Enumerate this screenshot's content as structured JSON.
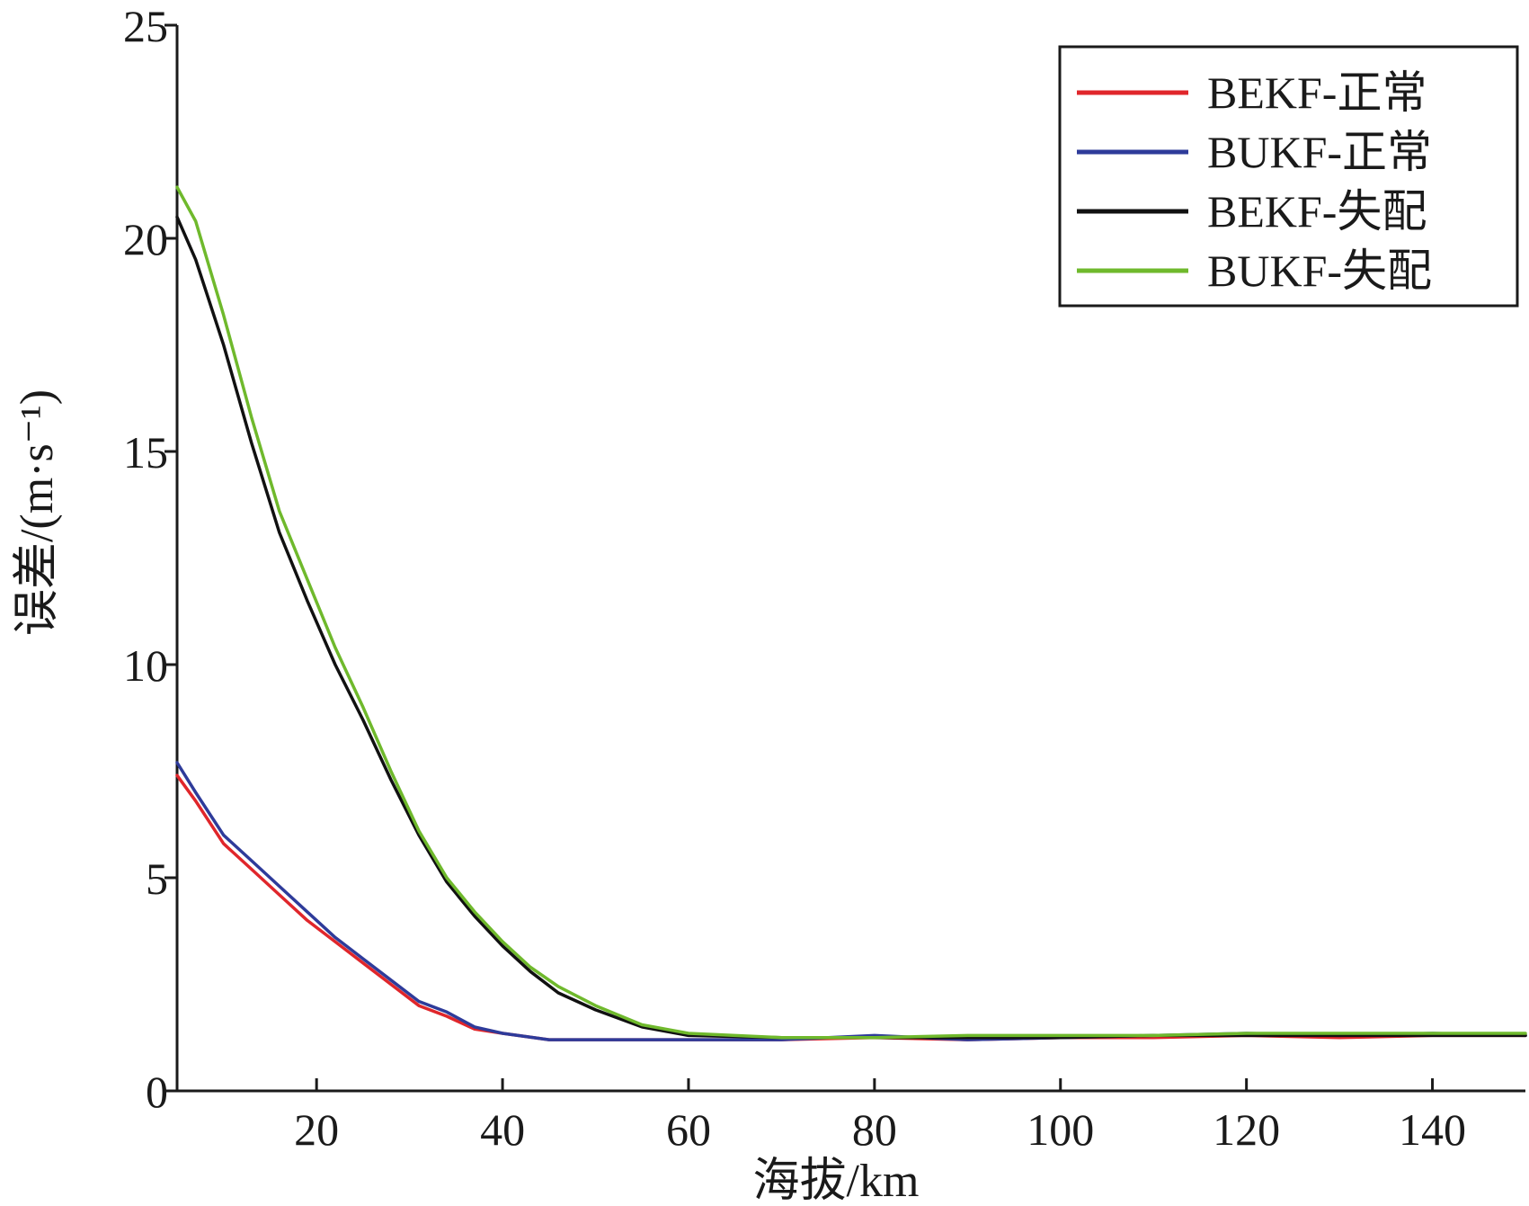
{
  "chart_data": {
    "type": "line",
    "title": "",
    "xlabel": "海拔/km",
    "ylabel": "误差/(m·s⁻¹)",
    "xlim": [
      5,
      150
    ],
    "ylim": [
      0,
      25
    ],
    "xticks": [
      20,
      40,
      60,
      80,
      100,
      120,
      140
    ],
    "xtick_labels": [
      "20",
      "40",
      "60",
      "80",
      "100",
      "120",
      "140"
    ],
    "yticks": [
      0,
      5,
      10,
      15,
      20,
      25
    ],
    "ytick_labels": [
      "0",
      "5",
      "10",
      "15",
      "20",
      "25"
    ],
    "grid": false,
    "legend_position": "top-right",
    "series": [
      {
        "name": "BEKF-正常",
        "color": "#e0262b",
        "x": [
          5,
          7,
          10,
          13,
          16,
          19,
          22,
          25,
          28,
          31,
          34,
          37,
          40,
          45,
          50,
          60,
          70,
          80,
          90,
          100,
          110,
          120,
          130,
          140,
          150
        ],
        "y": [
          7.4,
          6.8,
          5.8,
          5.2,
          4.6,
          4.0,
          3.5,
          3.0,
          2.5,
          2.0,
          1.75,
          1.45,
          1.35,
          1.2,
          1.2,
          1.2,
          1.2,
          1.25,
          1.2,
          1.25,
          1.25,
          1.3,
          1.25,
          1.3,
          1.3
        ]
      },
      {
        "name": "BUKF-正常",
        "color": "#2e3b9a",
        "x": [
          5,
          7,
          10,
          13,
          16,
          19,
          22,
          25,
          28,
          31,
          34,
          37,
          40,
          45,
          50,
          60,
          70,
          80,
          90,
          100,
          110,
          120,
          130,
          140,
          150
        ],
        "y": [
          7.7,
          7.0,
          6.0,
          5.4,
          4.8,
          4.2,
          3.6,
          3.1,
          2.6,
          2.1,
          1.85,
          1.5,
          1.35,
          1.2,
          1.2,
          1.2,
          1.2,
          1.3,
          1.2,
          1.25,
          1.3,
          1.35,
          1.3,
          1.35,
          1.3
        ]
      },
      {
        "name": "BEKF-失配",
        "color": "#111111",
        "x": [
          5,
          7,
          10,
          13,
          16,
          19,
          22,
          25,
          28,
          31,
          34,
          37,
          40,
          43,
          46,
          50,
          55,
          60,
          70,
          80,
          90,
          100,
          110,
          120,
          130,
          140,
          150
        ],
        "y": [
          20.5,
          19.5,
          17.5,
          15.2,
          13.1,
          11.5,
          10.0,
          8.7,
          7.3,
          6.0,
          4.9,
          4.1,
          3.4,
          2.8,
          2.3,
          1.9,
          1.5,
          1.3,
          1.25,
          1.25,
          1.25,
          1.25,
          1.3,
          1.3,
          1.3,
          1.3,
          1.3
        ]
      },
      {
        "name": "BUKF-失配",
        "color": "#6fb92c",
        "x": [
          5,
          7,
          10,
          13,
          16,
          19,
          22,
          25,
          28,
          31,
          34,
          37,
          40,
          43,
          46,
          50,
          55,
          60,
          70,
          80,
          90,
          100,
          110,
          120,
          130,
          140,
          150
        ],
        "y": [
          21.2,
          20.4,
          18.2,
          15.8,
          13.6,
          12.0,
          10.4,
          9.0,
          7.5,
          6.1,
          5.0,
          4.2,
          3.5,
          2.9,
          2.45,
          2.0,
          1.55,
          1.35,
          1.25,
          1.25,
          1.3,
          1.3,
          1.3,
          1.35,
          1.35,
          1.35,
          1.35
        ]
      }
    ]
  }
}
